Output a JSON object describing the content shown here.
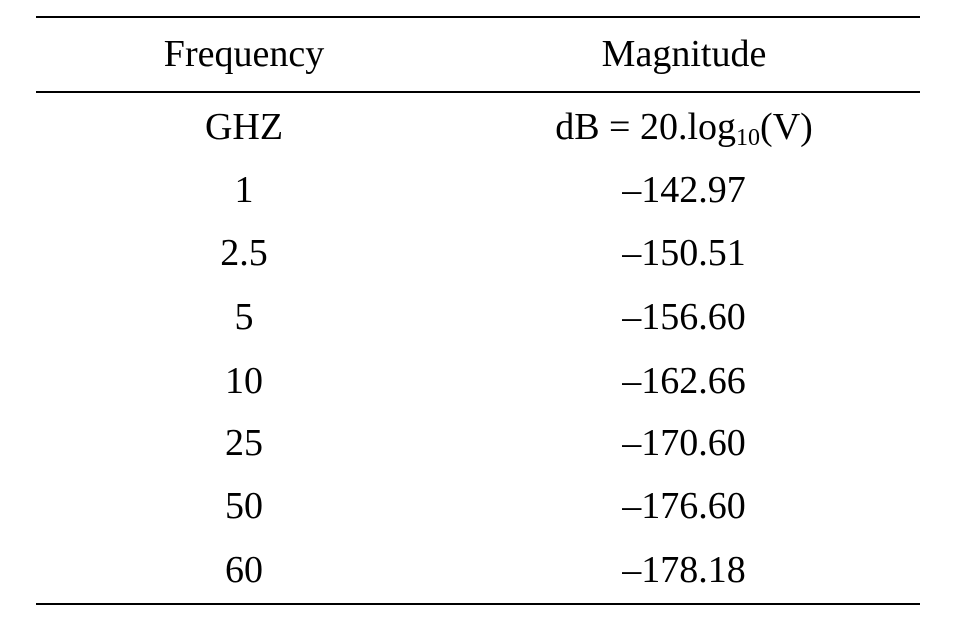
{
  "table": {
    "header": {
      "frequency": "Frequency",
      "magnitude": "Magnitude"
    },
    "units": {
      "frequency": "GHZ",
      "magnitude_prefix": "dB = 20.log",
      "magnitude_sub": "10",
      "magnitude_suffix": "(V)"
    },
    "rows": [
      {
        "frequency": "1",
        "magnitude": "–142.97"
      },
      {
        "frequency": "2.5",
        "magnitude": "–150.51"
      },
      {
        "frequency": "5",
        "magnitude": "–156.60"
      },
      {
        "frequency": "10",
        "magnitude": "–162.66"
      },
      {
        "frequency": "25",
        "magnitude": "–170.60"
      },
      {
        "frequency": "50",
        "magnitude": "–176.60"
      },
      {
        "frequency": "60",
        "magnitude": "–178.18"
      }
    ]
  }
}
